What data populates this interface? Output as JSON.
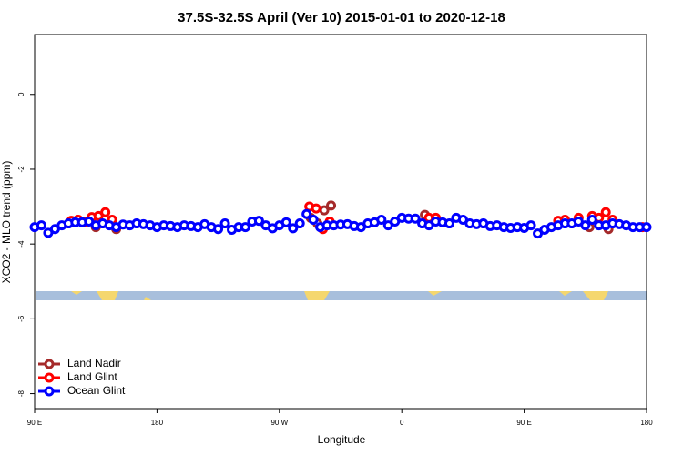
{
  "chart_data": {
    "type": "scatter",
    "title": "37.5S-32.5S April (Ver 10)   2015-01-01 to 2020-12-18",
    "x_label": "Longitude",
    "y_label": "XCO2 - MLO trend (ppm)",
    "xlim": [
      90,
      540
    ],
    "xticks": [
      {
        "value": 90,
        "label": "90 E"
      },
      180,
      {
        "value": 270,
        "label": "90 W"
      },
      {
        "value": 360,
        "label": "0"
      },
      {
        "value": 450,
        "label": "90 E"
      },
      {
        "value": 540,
        "label": "180"
      }
    ],
    "ylim": [
      -8.4,
      1.6
    ],
    "yticks": [
      0,
      -2,
      -4,
      -6,
      -8
    ],
    "legend": "bottomleft",
    "series": [
      {
        "name": "Land Nadir",
        "color": "#a52a2a",
        "x": [
          135,
          150,
          293,
          298,
          303,
          308,
          377,
          498,
          512
        ],
        "values": [
          -3.55,
          -3.6,
          -3.3,
          -3.45,
          -3.1,
          -2.97,
          -3.22,
          -3.55,
          -3.6
        ]
      },
      {
        "name": "Land Glint",
        "color": "#ff0000",
        "x": [
          117,
          122,
          127,
          132,
          137,
          142,
          147,
          292,
          297,
          302,
          307,
          380,
          385,
          475,
          480,
          490,
          500,
          505,
          510,
          515,
          537
        ],
        "values": [
          -3.38,
          -3.35,
          -3.42,
          -3.28,
          -3.25,
          -3.15,
          -3.35,
          -3.0,
          -3.05,
          -3.6,
          -3.4,
          -3.3,
          -3.3,
          -3.38,
          -3.35,
          -3.3,
          -3.25,
          -3.3,
          -3.15,
          -3.35,
          -3.55
        ]
      },
      {
        "name": "Ocean Glint",
        "color": "#0000ff",
        "x": [
          90,
          95,
          100,
          105,
          110,
          115,
          120,
          125,
          130,
          135,
          140,
          145,
          150,
          155,
          160,
          165,
          170,
          175,
          180,
          185,
          190,
          195,
          200,
          205,
          210,
          215,
          220,
          225,
          230,
          235,
          240,
          245,
          250,
          255,
          260,
          265,
          270,
          275,
          280,
          285,
          290,
          295,
          300,
          305,
          310,
          315,
          320,
          325,
          330,
          335,
          340,
          345,
          350,
          355,
          360,
          365,
          370,
          375,
          380,
          385,
          390,
          395,
          400,
          405,
          410,
          415,
          420,
          425,
          430,
          435,
          440,
          445,
          450,
          455,
          460,
          465,
          470,
          475,
          480,
          485,
          490,
          495,
          500,
          505,
          510,
          515,
          520,
          525,
          530,
          535,
          540
        ],
        "values": [
          -3.55,
          -3.5,
          -3.7,
          -3.6,
          -3.5,
          -3.45,
          -3.42,
          -3.42,
          -3.4,
          -3.5,
          -3.45,
          -3.5,
          -3.55,
          -3.48,
          -3.5,
          -3.45,
          -3.47,
          -3.5,
          -3.55,
          -3.5,
          -3.52,
          -3.55,
          -3.5,
          -3.52,
          -3.55,
          -3.47,
          -3.55,
          -3.6,
          -3.45,
          -3.62,
          -3.55,
          -3.55,
          -3.4,
          -3.38,
          -3.5,
          -3.58,
          -3.5,
          -3.42,
          -3.58,
          -3.45,
          -3.2,
          -3.35,
          -3.55,
          -3.5,
          -3.5,
          -3.48,
          -3.47,
          -3.52,
          -3.55,
          -3.45,
          -3.42,
          -3.35,
          -3.5,
          -3.4,
          -3.3,
          -3.32,
          -3.32,
          -3.45,
          -3.5,
          -3.4,
          -3.42,
          -3.45,
          -3.3,
          -3.35,
          -3.45,
          -3.47,
          -3.45,
          -3.52,
          -3.5,
          -3.55,
          -3.57,
          -3.55,
          -3.57,
          -3.5,
          -3.72,
          -3.62,
          -3.55,
          -3.5,
          -3.45,
          -3.45,
          -3.4,
          -3.5,
          -3.35,
          -3.5,
          -3.5,
          -3.45,
          -3.47,
          -3.5,
          -3.55,
          -3.55,
          -3.55
        ]
      }
    ]
  }
}
